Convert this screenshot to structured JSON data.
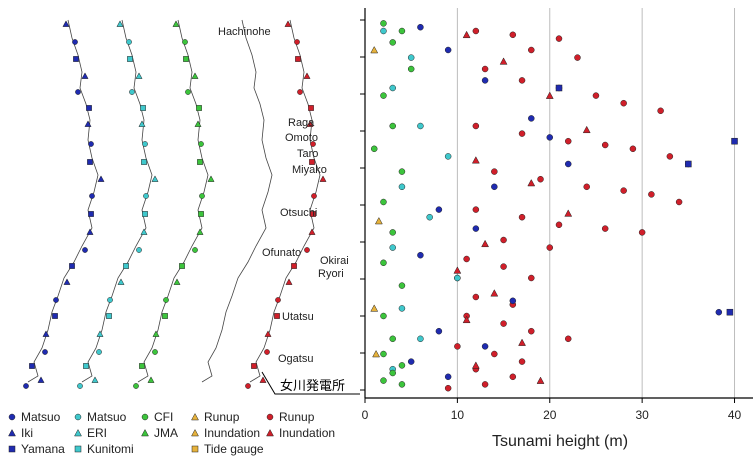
{
  "colors": {
    "matsuo": "#1f2bb0",
    "kunitomi": "#3fc8cc",
    "cfi": "#3cc43c",
    "runup_gold": "#e6b23c",
    "runup_red": "#d01f2a"
  },
  "places": [
    {
      "key": "hachinohe",
      "label": "Hachinohe"
    },
    {
      "key": "raga",
      "label": "Raga"
    },
    {
      "key": "omoto",
      "label": "Omoto"
    },
    {
      "key": "taro",
      "label": "Taro"
    },
    {
      "key": "miyako",
      "label": "Miyako"
    },
    {
      "key": "otsuchi",
      "label": "Otsuchi"
    },
    {
      "key": "ofunato",
      "label": "Ofunato"
    },
    {
      "key": "okirai",
      "label": "Okirai"
    },
    {
      "key": "ryori",
      "label": "Ryori"
    },
    {
      "key": "utatsu",
      "label": "Utatsu"
    },
    {
      "key": "ogatsu",
      "label": "Ogatsu"
    }
  ],
  "plant_label": "女川発電所",
  "legend": [
    {
      "label": "Matsuo",
      "shape": "circle",
      "color": "#1f2bb0"
    },
    {
      "label": "Iki",
      "shape": "triangle",
      "color": "#1f2bb0"
    },
    {
      "label": "Yamana",
      "shape": "square",
      "color": "#1f2bb0"
    },
    {
      "label": "Matsuo",
      "shape": "circle",
      "color": "#3fc8cc"
    },
    {
      "label": "ERI",
      "shape": "triangle",
      "color": "#3fc8cc"
    },
    {
      "label": "Kunitomi",
      "shape": "square",
      "color": "#3fc8cc"
    },
    {
      "label": "CFI",
      "shape": "circle",
      "color": "#3cc43c"
    },
    {
      "label": "JMA",
      "shape": "triangle",
      "color": "#3cc43c"
    },
    {
      "label": "Runup",
      "shape": "triangle",
      "color": "#e6b23c"
    },
    {
      "label": "Inundation",
      "shape": "triangle",
      "color": "#e6b23c"
    },
    {
      "label": "Tide gauge",
      "shape": "square",
      "color": "#e6b23c"
    },
    {
      "label": "Runup",
      "shape": "circle",
      "color": "#d01f2a"
    },
    {
      "label": "Inundation",
      "shape": "triangle",
      "color": "#d01f2a"
    }
  ],
  "chart_data": {
    "type": "scatter",
    "xlabel": "Tsunami height (m)",
    "xlim": [
      0,
      42
    ],
    "xticks": [
      0,
      10,
      20,
      30,
      40
    ],
    "grid": "vertical",
    "series": [
      {
        "label": "Runup",
        "color": "#d01f2a",
        "shape": "circle",
        "points": [
          [
            12,
            0.05
          ],
          [
            16,
            0.06
          ],
          [
            21,
            0.07
          ],
          [
            18,
            0.1
          ],
          [
            23,
            0.12
          ],
          [
            13,
            0.15
          ],
          [
            17,
            0.18
          ],
          [
            21,
            0.2
          ],
          [
            25,
            0.22
          ],
          [
            28,
            0.24
          ],
          [
            32,
            0.26
          ],
          [
            12,
            0.3
          ],
          [
            17,
            0.32
          ],
          [
            22,
            0.34
          ],
          [
            26,
            0.35
          ],
          [
            29,
            0.36
          ],
          [
            33,
            0.38
          ],
          [
            35,
            0.4
          ],
          [
            14,
            0.42
          ],
          [
            19,
            0.44
          ],
          [
            24,
            0.46
          ],
          [
            28,
            0.47
          ],
          [
            31,
            0.48
          ],
          [
            34,
            0.5
          ],
          [
            12,
            0.52
          ],
          [
            17,
            0.54
          ],
          [
            21,
            0.56
          ],
          [
            26,
            0.57
          ],
          [
            30,
            0.58
          ],
          [
            15,
            0.6
          ],
          [
            20,
            0.62
          ],
          [
            11,
            0.65
          ],
          [
            15,
            0.67
          ],
          [
            18,
            0.7
          ],
          [
            12,
            0.75
          ],
          [
            16,
            0.77
          ],
          [
            11,
            0.8
          ],
          [
            15,
            0.82
          ],
          [
            18,
            0.84
          ],
          [
            22,
            0.86
          ],
          [
            10,
            0.88
          ],
          [
            14,
            0.9
          ],
          [
            17,
            0.92
          ],
          [
            12,
            0.94
          ],
          [
            16,
            0.96
          ],
          [
            13,
            0.98
          ],
          [
            9,
            0.99
          ]
        ]
      },
      {
        "label": "Inundation",
        "color": "#d01f2a",
        "shape": "triangle",
        "points": [
          [
            11,
            0.06
          ],
          [
            15,
            0.13
          ],
          [
            20,
            0.22
          ],
          [
            24,
            0.31
          ],
          [
            12,
            0.39
          ],
          [
            18,
            0.45
          ],
          [
            22,
            0.53
          ],
          [
            13,
            0.61
          ],
          [
            10,
            0.68
          ],
          [
            14,
            0.74
          ],
          [
            11,
            0.81
          ],
          [
            17,
            0.87
          ],
          [
            12,
            0.93
          ],
          [
            19,
            0.97
          ]
        ]
      },
      {
        "label": "Matsuo",
        "color": "#1f2bb0",
        "shape": "circle",
        "points": [
          [
            6,
            0.04
          ],
          [
            9,
            0.1
          ],
          [
            13,
            0.18
          ],
          [
            18,
            0.28
          ],
          [
            20,
            0.33
          ],
          [
            22,
            0.4
          ],
          [
            14,
            0.46
          ],
          [
            8,
            0.52
          ],
          [
            12,
            0.57
          ],
          [
            6,
            0.64
          ],
          [
            10,
            0.7
          ],
          [
            16,
            0.76
          ],
          [
            38.3,
            0.79
          ],
          [
            8,
            0.84
          ],
          [
            13,
            0.88
          ],
          [
            5,
            0.92
          ],
          [
            9,
            0.96
          ]
        ]
      },
      {
        "label": "Yamana",
        "color": "#1f2bb0",
        "shape": "square",
        "points": [
          [
            40,
            0.34
          ],
          [
            39.5,
            0.79
          ],
          [
            35,
            0.4
          ],
          [
            21,
            0.2
          ]
        ]
      },
      {
        "label": "Matsuo",
        "color": "#3fc8cc",
        "shape": "circle",
        "points": [
          [
            2,
            0.05
          ],
          [
            5,
            0.12
          ],
          [
            3,
            0.2
          ],
          [
            6,
            0.3
          ],
          [
            9,
            0.38
          ],
          [
            4,
            0.46
          ],
          [
            7,
            0.54
          ],
          [
            3,
            0.62
          ],
          [
            10,
            0.7
          ],
          [
            4,
            0.78
          ],
          [
            6,
            0.86
          ],
          [
            3,
            0.94
          ]
        ]
      },
      {
        "label": "CFI",
        "color": "#3cc43c",
        "shape": "circle",
        "points": [
          [
            2,
            0.03
          ],
          [
            4,
            0.05
          ],
          [
            3,
            0.08
          ],
          [
            5,
            0.15
          ],
          [
            2,
            0.22
          ],
          [
            3,
            0.3
          ],
          [
            1,
            0.36
          ],
          [
            4,
            0.42
          ],
          [
            2,
            0.5
          ],
          [
            3,
            0.58
          ],
          [
            2,
            0.66
          ],
          [
            4,
            0.72
          ],
          [
            2,
            0.8
          ],
          [
            3,
            0.86
          ],
          [
            2,
            0.9
          ],
          [
            4,
            0.93
          ],
          [
            3,
            0.95
          ],
          [
            2,
            0.97
          ],
          [
            4,
            0.98
          ]
        ]
      },
      {
        "label": "Runup",
        "color": "#e6b23c",
        "shape": "triangle",
        "points": [
          [
            1,
            0.1
          ],
          [
            1.5,
            0.55
          ],
          [
            1,
            0.78
          ],
          [
            1.2,
            0.9
          ]
        ]
      }
    ]
  }
}
